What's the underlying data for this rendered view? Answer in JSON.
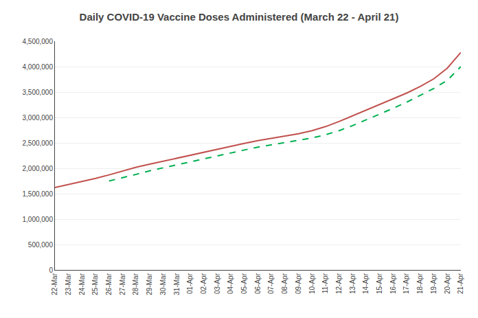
{
  "chart_data": {
    "type": "line",
    "title": "Daily COVID-19 Vaccine Doses Administered (March 22 - April 21)",
    "categories": [
      "22-Mar",
      "23-Mar",
      "24-Mar",
      "25-Mar",
      "26-Mar",
      "27-Mar",
      "28-Mar",
      "29-Mar",
      "30-Mar",
      "31-Mar",
      "01-Apr",
      "02-Apr",
      "03-Apr",
      "04-Apr",
      "05-Apr",
      "06-Apr",
      "07-Apr",
      "08-Apr",
      "09-Apr",
      "10-Apr",
      "11-Apr",
      "12-Apr",
      "13-Apr",
      "14-Apr",
      "15-Apr",
      "16-Apr",
      "17-Apr",
      "18-Apr",
      "19-Apr",
      "20-Apr",
      "21-Apr"
    ],
    "series": [
      {
        "color": "#c0504d",
        "line_style": "solid",
        "values": [
          1622000,
          1680000,
          1740000,
          1800000,
          1870000,
          1950000,
          2020000,
          2080000,
          2140000,
          2195000,
          2255000,
          2310000,
          2370000,
          2430000,
          2490000,
          2545000,
          2590000,
          2630000,
          2680000,
          2740000,
          2820000,
          2920000,
          3030000,
          3145000,
          3255000,
          3365000,
          3480000,
          3610000,
          3760000,
          3970000,
          4280000
        ]
      },
      {
        "color": "#00b050",
        "line_style": "dashed",
        "values": [
          null,
          null,
          null,
          null,
          1750000,
          1810000,
          1880000,
          1950000,
          2010000,
          2065000,
          2130000,
          2190000,
          2250000,
          2305000,
          2360000,
          2415000,
          2460000,
          2500000,
          2545000,
          2595000,
          2660000,
          2740000,
          2840000,
          2950000,
          3060000,
          3180000,
          3300000,
          3430000,
          3570000,
          3730000,
          4000000
        ]
      }
    ],
    "ylim": [
      0,
      4500000
    ],
    "yticks": [
      0,
      {
        "value": 500000,
        "label": "500,000"
      },
      {
        "value": 1000000,
        "label": "1,000,000"
      },
      {
        "value": 1500000,
        "label": "1,500,000"
      },
      {
        "value": 2000000,
        "label": "2,000,000"
      },
      {
        "value": 2500000,
        "label": "2,500,000"
      },
      {
        "value": 3000000,
        "label": "3,000,000"
      },
      {
        "value": 3500000,
        "label": "3,500,000"
      },
      {
        "value": 4000000,
        "label": "4,000,000"
      },
      {
        "value": 4500000,
        "label": "4,500,000"
      }
    ],
    "grid": "y"
  }
}
